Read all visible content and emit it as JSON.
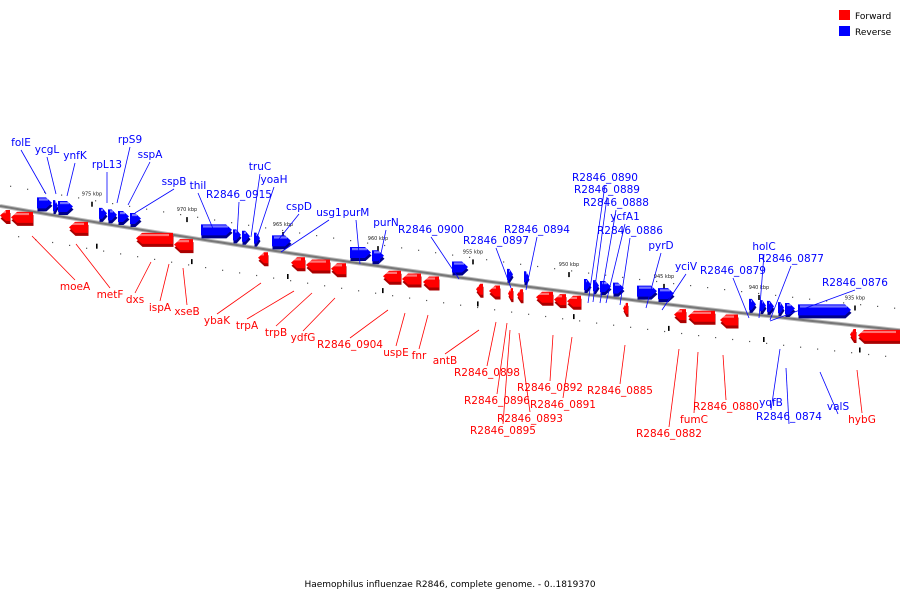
{
  "caption": "Haemophilus influenzae R2846, complete genome. - 0..1819370",
  "legend": [
    {
      "label": "Forward",
      "color": "#ff0000"
    },
    {
      "label": "Reverse",
      "color": "#0000ff"
    }
  ],
  "colors": {
    "forward": "#ff0000",
    "reverse": "#0000ff",
    "backbone": "#777777",
    "tick": "#000000"
  },
  "scale_ticks": [
    "975 kbp",
    "970 kbp",
    "965 kbp",
    "960 kbp",
    "955 kbp",
    "950 kbp",
    "945 kbp",
    "940 kbp",
    "935 kbp"
  ],
  "reverse_genes": [
    "folE",
    "ycgL",
    "ynfK",
    "rpL13",
    "rpS9",
    "sspA",
    "sspB",
    "thiI",
    "R2846_0915",
    "truC",
    "yoaH",
    "cspD",
    "usg1",
    "purM",
    "purN",
    "R2846_0900",
    "R2846_0897",
    "R2846_0894",
    "R2846_0890",
    "R2846_0889",
    "R2846_0888",
    "ycfA1",
    "R2846_0886",
    "pyrD",
    "yciV",
    "R2846_0879",
    "holC",
    "R2846_0877",
    "R2846_0876",
    "yqfB",
    "R2846_0874",
    "valS"
  ],
  "forward_genes": [
    "moeA",
    "metF",
    "dxs",
    "ispA",
    "xseB",
    "ybaK",
    "trpA",
    "trpB",
    "ydfG",
    "R2846_0904",
    "uspE",
    "fnr",
    "antB",
    "R2846_0898",
    "R2846_0896",
    "R2846_0895",
    "R2846_0893",
    "R2846_0892",
    "R2846_0891",
    "R2846_0885",
    "R2846_0882",
    "fumC",
    "R2846_0880",
    "hybG"
  ]
}
